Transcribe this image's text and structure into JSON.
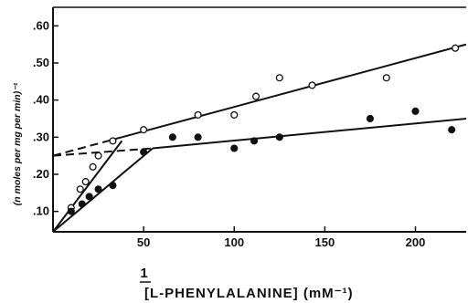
{
  "chart_data": {
    "type": "scatter",
    "xlabel_numerator": "1",
    "xlabel": "[L-PHENYLALANINE] (mM⁻¹)",
    "ylabel": "(n moles per mg per min)⁻¹",
    "xlim": [
      0,
      228
    ],
    "ylim": [
      0.045,
      0.65
    ],
    "x_ticks": [
      50,
      100,
      150,
      200
    ],
    "x_tick_labels": [
      "50",
      "100",
      "150",
      "200"
    ],
    "y_ticks": [
      0.1,
      0.2,
      0.3,
      0.4,
      0.5,
      0.6
    ],
    "y_tick_labels": [
      ".10",
      ".20",
      ".30",
      ".40",
      ".50",
      ".60"
    ],
    "grid": false,
    "series": [
      {
        "marker": "open-circle",
        "points": [
          [
            10,
            0.11
          ],
          [
            15,
            0.16
          ],
          [
            18,
            0.18
          ],
          [
            22,
            0.22
          ],
          [
            25,
            0.25
          ],
          [
            33,
            0.29
          ],
          [
            50,
            0.32
          ],
          [
            80,
            0.36
          ],
          [
            100,
            0.36
          ],
          [
            112,
            0.41
          ],
          [
            125,
            0.46
          ],
          [
            143,
            0.44
          ],
          [
            184,
            0.46
          ],
          [
            222,
            0.54
          ]
        ],
        "fit_lines": [
          {
            "style": "solid",
            "from": [
              0,
              0.045
            ],
            "to": [
              38,
              0.29
            ]
          },
          {
            "style": "solid",
            "from": [
              38,
              0.3
            ],
            "to": [
              228,
              0.55
            ]
          },
          {
            "style": "dashed",
            "from": [
              0,
              0.25
            ],
            "to": [
              38,
              0.3
            ]
          }
        ]
      },
      {
        "marker": "filled-circle",
        "points": [
          [
            10,
            0.1
          ],
          [
            16,
            0.12
          ],
          [
            20,
            0.14
          ],
          [
            25,
            0.16
          ],
          [
            33,
            0.17
          ],
          [
            50,
            0.26
          ],
          [
            66,
            0.3
          ],
          [
            80,
            0.3
          ],
          [
            100,
            0.27
          ],
          [
            111,
            0.29
          ],
          [
            125,
            0.3
          ],
          [
            175,
            0.35
          ],
          [
            200,
            0.37
          ],
          [
            220,
            0.32
          ]
        ],
        "fit_lines": [
          {
            "style": "solid",
            "from": [
              0,
              0.045
            ],
            "to": [
              55,
              0.27
            ]
          },
          {
            "style": "solid",
            "from": [
              55,
              0.27
            ],
            "to": [
              228,
              0.35
            ]
          },
          {
            "style": "dashed",
            "from": [
              0,
              0.25
            ],
            "to": [
              55,
              0.27
            ]
          }
        ]
      }
    ]
  }
}
